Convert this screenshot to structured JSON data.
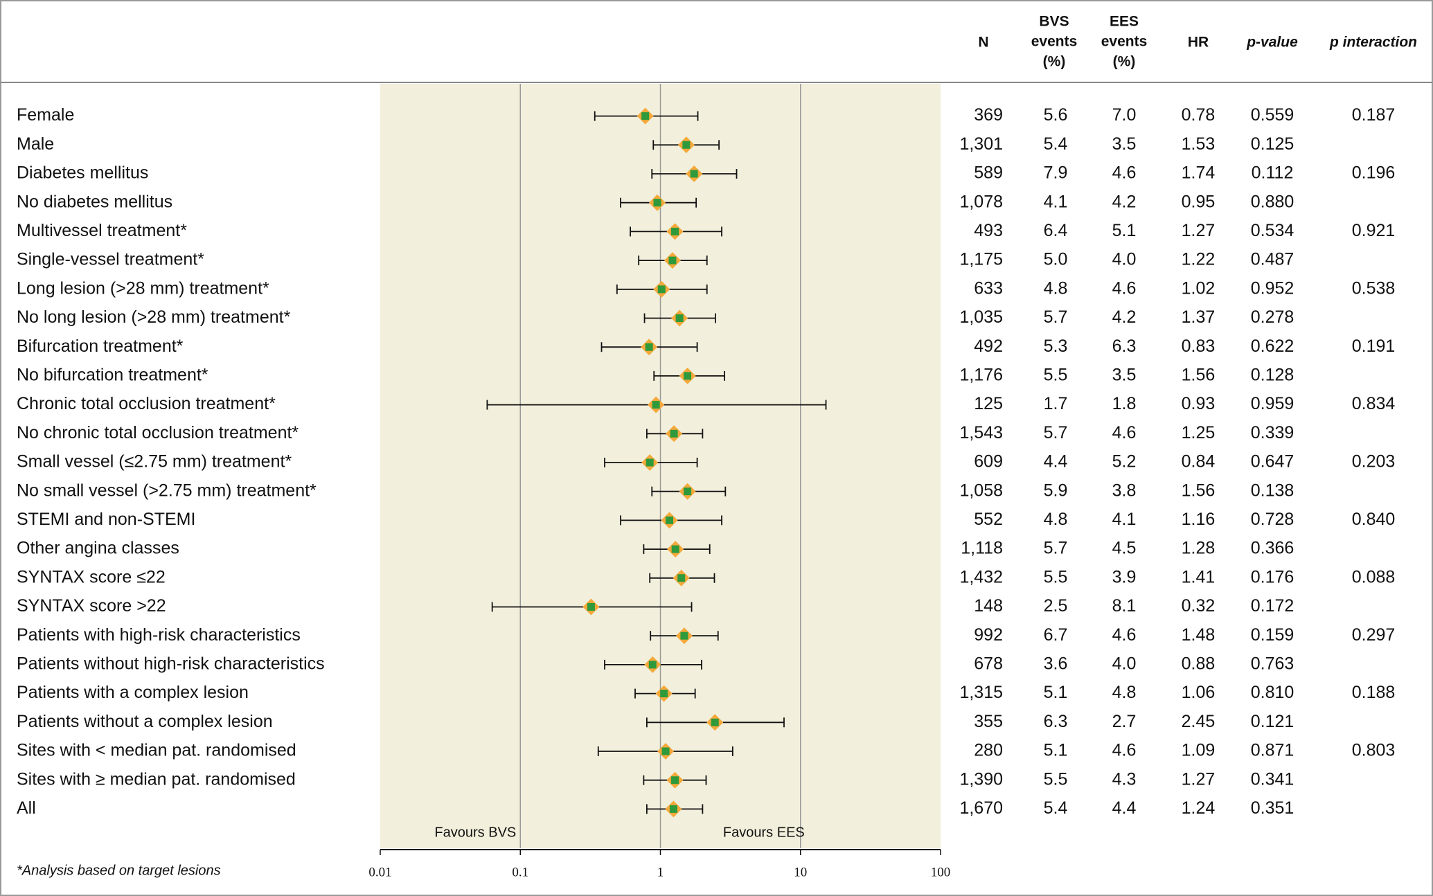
{
  "chart_data": {
    "type": "forest",
    "xscale": "log",
    "xlim": [
      0.01,
      100
    ],
    "xticks": [
      0.01,
      0.1,
      1,
      10,
      100
    ],
    "grid": true,
    "plot_background": "#f2efdc",
    "diamond_color": "#f5a93a",
    "marker_color": "#2f9a3c",
    "annotations": [
      "Favours BVS",
      "Favours EES"
    ],
    "footnote": "*Analysis based on target lesions",
    "headers": {
      "n": [
        "N"
      ],
      "bvs": [
        "BVS",
        "events",
        "(%)"
      ],
      "ees": [
        "EES",
        "events",
        "(%)"
      ],
      "hr": [
        "HR"
      ],
      "p": [
        "p-value"
      ],
      "p_interaction": [
        "p interaction"
      ]
    },
    "categories": [
      "Female",
      "Male",
      "Diabetes mellitus",
      "No diabetes mellitus",
      "Multivessel treatment*",
      "Single-vessel treatment*",
      "Long lesion (>28 mm) treatment*",
      "No long lesion (>28 mm) treatment*",
      "Bifurcation treatment*",
      "No bifurcation treatment*",
      "Chronic total occlusion treatment*",
      "No chronic total occlusion treatment*",
      "Small vessel (≤2.75 mm) treatment*",
      "No small vessel (>2.75 mm) treatment*",
      "STEMI and non-STEMI",
      "Other angina classes",
      "SYNTAX score ≤22",
      "SYNTAX score >22",
      "Patients with high-risk characteristics",
      "Patients without high-risk characteristics",
      "Patients with a complex lesion",
      "Patients without a complex lesion",
      "Sites with < median pat. randomised",
      "Sites with ≥ median pat. randomised",
      "All"
    ],
    "values": [
      0.78,
      1.53,
      1.74,
      0.95,
      1.27,
      1.22,
      1.02,
      1.37,
      0.83,
      1.56,
      0.93,
      1.25,
      0.84,
      1.56,
      1.16,
      1.28,
      1.41,
      0.32,
      1.48,
      0.88,
      1.06,
      2.45,
      1.09,
      1.27,
      1.24
    ],
    "ci_low": [
      0.34,
      0.89,
      0.87,
      0.52,
      0.61,
      0.7,
      0.49,
      0.77,
      0.38,
      0.9,
      0.058,
      0.8,
      0.4,
      0.87,
      0.52,
      0.76,
      0.84,
      0.063,
      0.85,
      0.4,
      0.66,
      0.8,
      0.36,
      0.76,
      0.8
    ],
    "ci_high": [
      1.85,
      2.62,
      3.5,
      1.8,
      2.74,
      2.15,
      2.15,
      2.47,
      1.83,
      2.87,
      15.2,
      2.0,
      1.83,
      2.91,
      2.74,
      2.25,
      2.43,
      1.67,
      2.58,
      1.97,
      1.77,
      7.63,
      3.28,
      2.12,
      2.0
    ],
    "n": [
      "369",
      "1,301",
      "589",
      "1,078",
      "493",
      "1,175",
      "633",
      "1,035",
      "492",
      "1,176",
      "125",
      "1,543",
      "609",
      "1,058",
      "552",
      "1,118",
      "1,432",
      "148",
      "992",
      "678",
      "1,315",
      "355",
      "280",
      "1,390",
      "1,670"
    ],
    "bvs": [
      "5.6",
      "5.4",
      "7.9",
      "4.1",
      "6.4",
      "5.0",
      "4.8",
      "5.7",
      "5.3",
      "5.5",
      "1.7",
      "5.7",
      "4.4",
      "5.9",
      "4.8",
      "5.7",
      "5.5",
      "2.5",
      "6.7",
      "3.6",
      "5.1",
      "6.3",
      "5.1",
      "5.5",
      "5.4"
    ],
    "ees": [
      "7.0",
      "3.5",
      "4.6",
      "4.2",
      "5.1",
      "4.0",
      "4.6",
      "4.2",
      "6.3",
      "3.5",
      "1.8",
      "4.6",
      "5.2",
      "3.8",
      "4.1",
      "4.5",
      "3.9",
      "8.1",
      "4.6",
      "4.0",
      "4.8",
      "2.7",
      "4.6",
      "4.3",
      "4.4"
    ],
    "p": [
      "0.559",
      "0.125",
      "0.112",
      "0.880",
      "0.534",
      "0.487",
      "0.952",
      "0.278",
      "0.622",
      "0.128",
      "0.959",
      "0.339",
      "0.647",
      "0.138",
      "0.728",
      "0.366",
      "0.176",
      "0.172",
      "0.159",
      "0.763",
      "0.810",
      "0.121",
      "0.871",
      "0.341",
      "0.351"
    ],
    "p_interaction": [
      "0.187",
      null,
      "0.196",
      null,
      "0.921",
      null,
      "0.538",
      null,
      "0.191",
      null,
      "0.834",
      null,
      "0.203",
      null,
      "0.840",
      null,
      "0.088",
      null,
      "0.297",
      null,
      "0.188",
      null,
      "0.803",
      null,
      null
    ]
  }
}
